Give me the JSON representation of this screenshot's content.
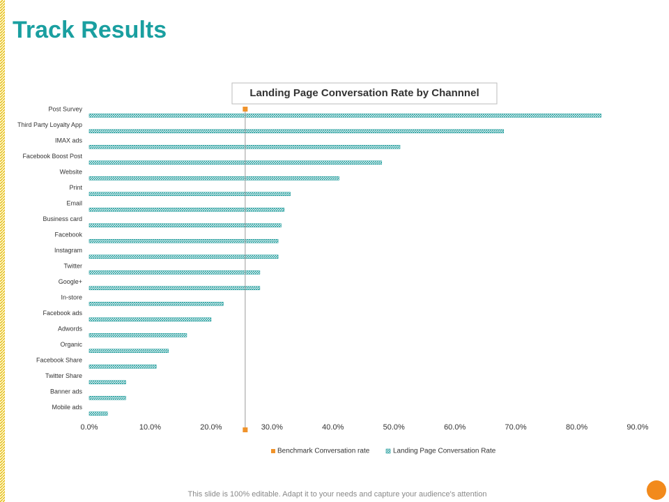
{
  "title": "Track Results",
  "footer": "This slide is 100% editable. Adapt it to your needs and capture your audience's attention",
  "chart_data": {
    "type": "bar",
    "orientation": "horizontal",
    "title": "Landing Page Conversation Rate by Channnel",
    "categories": [
      "Post Survey",
      "Third Party Loyalty App",
      "IMAX ads",
      "Facebook Boost Post",
      "Website",
      "Print",
      "Email",
      "Business card",
      "Facebook",
      "Instagram",
      "Twitter",
      "Google+",
      "In-store",
      "Facebook ads",
      "Adwords",
      "Organic",
      "Facebook Share",
      "Twitter Share",
      "Banner ads",
      "Mobile ads"
    ],
    "series": [
      {
        "name": "Landing Page Conversation Rate",
        "color": "#1a9a9a",
        "values": [
          84,
          68,
          51,
          48,
          41,
          33,
          32,
          31.5,
          31,
          31,
          28,
          28,
          22,
          20,
          16,
          13,
          11,
          6,
          6,
          3
        ]
      }
    ],
    "benchmark": {
      "name": "Benchmark Conversation rate",
      "color": "#f0932b",
      "value": 25.6
    },
    "xlim": [
      0,
      90
    ],
    "xticks": [
      {
        "value": 0,
        "label": "0.0%"
      },
      {
        "value": 10,
        "label": "10.0%"
      },
      {
        "value": 20,
        "label": "20.0%"
      },
      {
        "value": 30,
        "label": "30.0%"
      },
      {
        "value": 40,
        "label": "40.0%"
      },
      {
        "value": 50,
        "label": "50.0%"
      },
      {
        "value": 60,
        "label": "60.0%"
      },
      {
        "value": 70,
        "label": "70.0%"
      },
      {
        "value": 80,
        "label": "80.0%"
      },
      {
        "value": 90,
        "label": "90.0%"
      }
    ]
  }
}
